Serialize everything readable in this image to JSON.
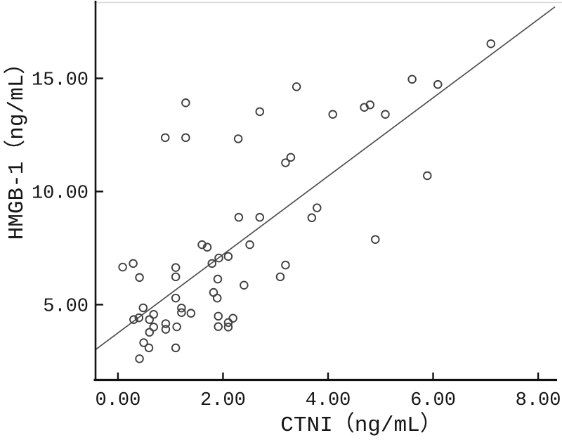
{
  "chart_data": {
    "type": "scatter",
    "title": "",
    "xlabel": "CTNI（ng/mL）",
    "ylabel": "HMGB-1（ng/mL）",
    "xlim": [
      -0.44,
      8.32
    ],
    "ylim": [
      1.69,
      18.37
    ],
    "grid": false,
    "legend": "none",
    "x_ticks": {
      "values": [
        0,
        2,
        4,
        6,
        8
      ],
      "labels": [
        "0.00",
        "2.00",
        "4.00",
        "6.00",
        "8.00"
      ]
    },
    "y_ticks": {
      "values": [
        5,
        10,
        15
      ],
      "labels": [
        "5.00",
        "10.00",
        "15.00"
      ]
    },
    "points": [
      [
        3.4,
        14.63
      ],
      [
        1.29,
        13.92
      ],
      [
        2.7,
        13.53
      ],
      [
        4.09,
        13.41
      ],
      [
        0.9,
        12.38
      ],
      [
        1.29,
        12.38
      ],
      [
        2.29,
        12.33
      ],
      [
        3.19,
        11.27
      ],
      [
        3.29,
        11.51
      ],
      [
        7.1,
        16.53
      ],
      [
        5.6,
        14.96
      ],
      [
        6.09,
        14.73
      ],
      [
        4.69,
        13.72
      ],
      [
        4.8,
        13.83
      ],
      [
        5.09,
        13.41
      ],
      [
        5.89,
        10.7
      ],
      [
        2.3,
        8.86
      ],
      [
        2.7,
        8.86
      ],
      [
        3.79,
        9.28
      ],
      [
        3.69,
        8.84
      ],
      [
        2.51,
        7.65
      ],
      [
        4.9,
        7.88
      ],
      [
        3.19,
        6.75
      ],
      [
        3.09,
        6.23
      ],
      [
        1.6,
        7.65
      ],
      [
        1.7,
        7.54
      ],
      [
        1.79,
        6.82
      ],
      [
        1.92,
        7.06
      ],
      [
        2.1,
        7.13
      ],
      [
        0.09,
        6.66
      ],
      [
        0.29,
        6.82
      ],
      [
        1.1,
        6.64
      ],
      [
        0.41,
        6.2
      ],
      [
        1.1,
        6.23
      ],
      [
        1.9,
        6.13
      ],
      [
        2.4,
        5.86
      ],
      [
        1.82,
        5.54
      ],
      [
        1.1,
        5.29
      ],
      [
        1.89,
        5.29
      ],
      [
        0.48,
        4.86
      ],
      [
        1.21,
        4.85
      ],
      [
        1.21,
        4.65
      ],
      [
        1.39,
        4.62
      ],
      [
        0.3,
        4.34
      ],
      [
        0.4,
        4.42
      ],
      [
        0.68,
        4.57
      ],
      [
        0.6,
        4.34
      ],
      [
        1.91,
        4.49
      ],
      [
        2.19,
        4.4
      ],
      [
        2.1,
        4.21
      ],
      [
        2.1,
        4.01
      ],
      [
        1.91,
        4.03
      ],
      [
        0.68,
        4.01
      ],
      [
        0.6,
        3.78
      ],
      [
        0.91,
        4.16
      ],
      [
        0.91,
        3.91
      ],
      [
        1.12,
        4.02
      ],
      [
        0.49,
        3.32
      ],
      [
        0.59,
        3.09
      ],
      [
        1.1,
        3.09
      ],
      [
        0.41,
        2.61
      ]
    ],
    "regression_line": {
      "slope": 1.732,
      "intercept": 3.75,
      "x_start": -0.44,
      "x_end": 8.32
    },
    "colors": {
      "point_stroke": "#3f3f3f",
      "line": "#4f4f4f",
      "axis": "#111111",
      "top_border": "#d8d8d8",
      "background": "#ffffff",
      "text": "#161616"
    }
  }
}
